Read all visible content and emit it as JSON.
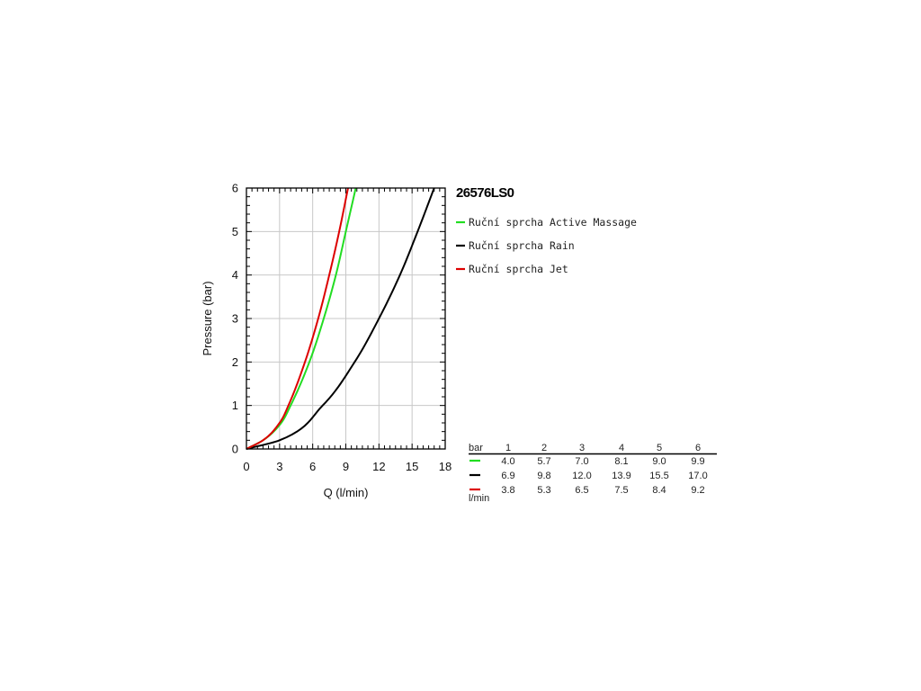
{
  "chart_data": {
    "type": "line",
    "title": "26576LS0",
    "xlabel": "Q (l/min)",
    "ylabel": "Pressure (bar)",
    "xlim": [
      0,
      18
    ],
    "ylim": [
      0,
      6
    ],
    "x_ticks": [
      0,
      3,
      6,
      9,
      12,
      15,
      18
    ],
    "y_ticks": [
      0,
      1,
      2,
      3,
      4,
      5,
      6
    ],
    "grid": true,
    "legend_position": "right",
    "series": [
      {
        "name": "Ruční sprcha Active Massage",
        "color": "#22dd22",
        "x": [
          0,
          1.5,
          3.0,
          4.0,
          5.7,
          7.0,
          8.1,
          9.0,
          9.9
        ],
        "y": [
          0,
          0.2,
          0.55,
          1,
          2,
          3,
          4,
          5,
          6
        ]
      },
      {
        "name": "Ruční sprcha Rain",
        "color": "#000000",
        "x": [
          0,
          3.0,
          6.9,
          9.8,
          12.0,
          13.9,
          15.5,
          17.0
        ],
        "y": [
          0,
          0.2,
          1,
          2,
          3,
          4,
          5,
          6
        ]
      },
      {
        "name": "Ruční sprcha Jet",
        "color": "#dd0000",
        "x": [
          0,
          1.5,
          3.0,
          3.8,
          5.3,
          6.5,
          7.5,
          8.4,
          9.2
        ],
        "y": [
          0,
          0.2,
          0.6,
          1,
          2,
          3,
          4,
          5,
          6
        ]
      }
    ],
    "table": {
      "header_label": "bar",
      "unit_label": "l/min",
      "columns": [
        "1",
        "2",
        "3",
        "4",
        "5",
        "6"
      ],
      "rows": [
        {
          "color": "#22dd22",
          "values": [
            "4.0",
            "5.7",
            "7.0",
            "8.1",
            "9.0",
            "9.9"
          ]
        },
        {
          "color": "#000000",
          "values": [
            "6.9",
            "9.8",
            "12.0",
            "13.9",
            "15.5",
            "17.0"
          ]
        },
        {
          "color": "#dd0000",
          "values": [
            "3.8",
            "5.3",
            "6.5",
            "7.5",
            "8.4",
            "9.2"
          ]
        }
      ]
    }
  }
}
